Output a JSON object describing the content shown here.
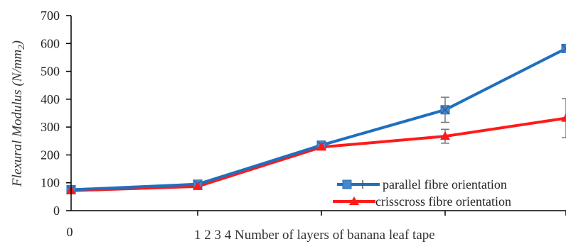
{
  "chart_data": {
    "type": "line",
    "title": "",
    "ylabel": "Flexural Modulus  (N/mm2)",
    "ylabel_main": "Flexural Modulus  (N/mm",
    "ylabel_sub": "2",
    "ylabel_close": ")",
    "xlabel": "1 2 3 4 Number of layers of banana leaf tape",
    "x_zero_label": "0",
    "x": [
      0,
      1,
      2,
      3,
      4
    ],
    "ylim": [
      0,
      700
    ],
    "yticks": [
      0,
      100,
      200,
      300,
      400,
      500,
      600,
      700
    ],
    "grid": false,
    "legend_position": "bottom-right",
    "series": [
      {
        "name": "parallel fibre orientation",
        "color": "#1f6fbf",
        "marker": "square-x",
        "values": [
          75,
          95,
          235,
          362,
          582
        ],
        "error": [
          0,
          0,
          0,
          45,
          0
        ]
      },
      {
        "name": "crisscross fibre orientation",
        "color": "#ff1a1a",
        "marker": "triangle",
        "values": [
          72,
          87,
          228,
          267,
          332
        ],
        "error": [
          0,
          0,
          0,
          25,
          70
        ]
      }
    ]
  }
}
